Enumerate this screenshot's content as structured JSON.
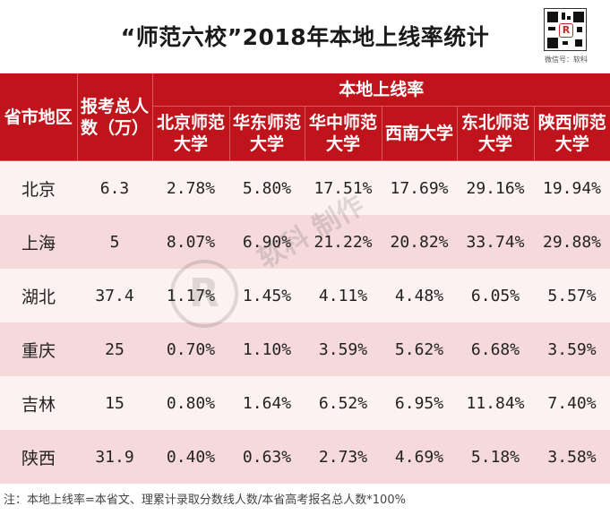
{
  "title": "“师范六校”2018年本地上线率统计",
  "qr_caption": "微信号：软科",
  "qr_logo": "R",
  "watermark": {
    "logo_letter": "R",
    "text": "软科 制作"
  },
  "header": {
    "province": "省市地区",
    "applicants": "报考总人数（万）",
    "group": "本地上线率",
    "universities": [
      "北京师范大学",
      "华东师范大学",
      "华中师范大学",
      "西南大学",
      "东北师范大学",
      "陕西师范大学"
    ]
  },
  "rows": [
    {
      "province": "北京",
      "applicants": "6.3",
      "rates": [
        "2.78%",
        "5.80%",
        "17.51%",
        "17.69%",
        "29.16%",
        "19.94%"
      ]
    },
    {
      "province": "上海",
      "applicants": "5",
      "rates": [
        "8.07%",
        "6.90%",
        "21.22%",
        "20.82%",
        "33.74%",
        "29.88%"
      ]
    },
    {
      "province": "湖北",
      "applicants": "37.4",
      "rates": [
        "1.17%",
        "1.45%",
        "4.11%",
        "4.48%",
        "6.05%",
        "5.57%"
      ]
    },
    {
      "province": "重庆",
      "applicants": "25",
      "rates": [
        "0.70%",
        "1.10%",
        "3.59%",
        "5.62%",
        "6.68%",
        "3.59%"
      ]
    },
    {
      "province": "吉林",
      "applicants": "15",
      "rates": [
        "0.80%",
        "1.64%",
        "6.52%",
        "6.95%",
        "11.84%",
        "7.40%"
      ]
    },
    {
      "province": "陕西",
      "applicants": "31.9",
      "rates": [
        "0.40%",
        "0.63%",
        "2.73%",
        "4.69%",
        "5.18%",
        "3.58%"
      ]
    }
  ],
  "footnote": "注：本地上线率=本省文、理累计录取分数线人数/本省高考报名总人数*100%",
  "colors": {
    "header_bg": "#c0141c",
    "row_light": "#fdf2f2",
    "row_dark": "#f6d9da"
  }
}
